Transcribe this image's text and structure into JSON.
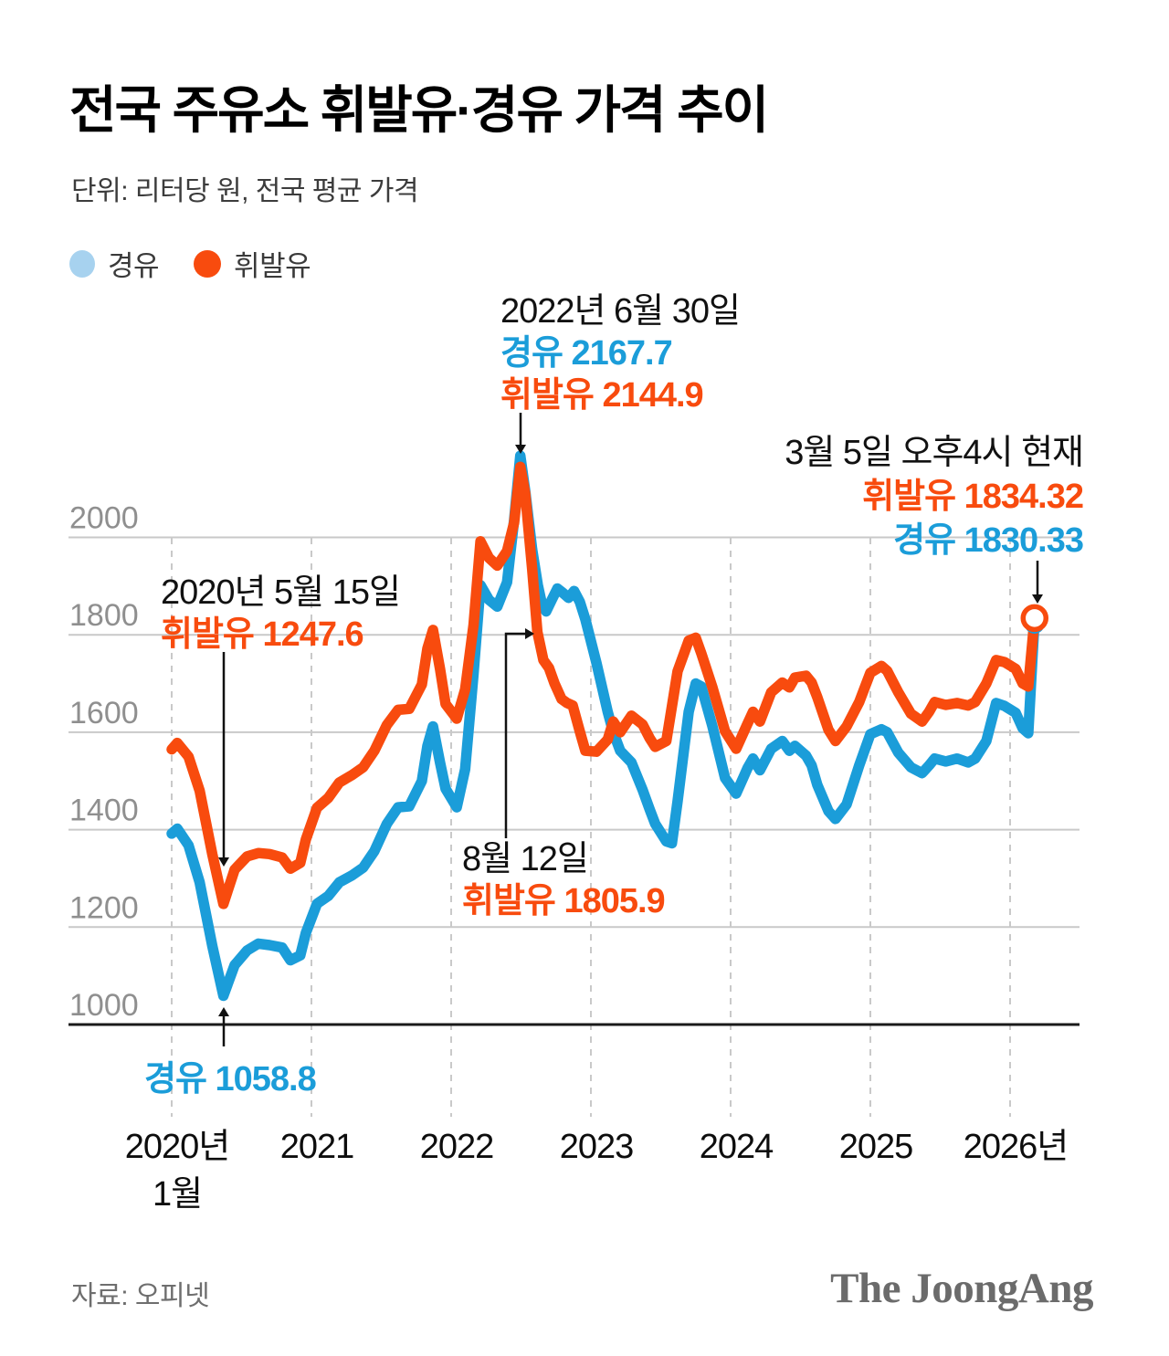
{
  "header": {
    "title": "전국 주유소 휘발유·경유 가격 추이",
    "subtitle": "단위: 리터당 원, 전국 평균 가격"
  },
  "legend": {
    "items": [
      {
        "label": "경유",
        "color": "#a7d2ef"
      },
      {
        "label": "휘발유",
        "color": "#f84b0e"
      }
    ]
  },
  "annotations": {
    "peak_2022": {
      "date": "2022년 6월 30일",
      "diesel": "경유 2167.7",
      "gasoline": "휘발유 2144.9"
    },
    "current": {
      "date": "3월 5일 오후4시 현재",
      "gasoline": "휘발유 1834.32",
      "diesel": "경유 1830.33"
    },
    "low_2020": {
      "date": "2020년 5월 15일",
      "gasoline": "휘발유 1247.6"
    },
    "aug_12": {
      "date": "8월 12일",
      "gasoline": "휘발유 1805.9"
    },
    "diesel_low": {
      "label": "경유 1058.8"
    }
  },
  "footer": {
    "source": "자료: 오피넷",
    "logo": "The JoongAng"
  },
  "chart_data": {
    "type": "line",
    "title": "전국 주유소 휘발유·경유 가격 추이",
    "unit": "원/리터 (전국 평균 가격)",
    "ylim": [
      1000,
      2200
    ],
    "y_ticks": [
      1000,
      1200,
      1400,
      1600,
      1800,
      2000
    ],
    "x_ticks": [
      {
        "label": "2020년",
        "sub": "1월",
        "year": 2020
      },
      {
        "label": "2021",
        "year": 2021
      },
      {
        "label": "2022",
        "year": 2022
      },
      {
        "label": "2023",
        "year": 2023
      },
      {
        "label": "2024",
        "year": 2024
      },
      {
        "label": "2025",
        "year": 2025
      },
      {
        "label": "2026년",
        "year": 2026
      }
    ],
    "grid": {
      "horizontal": true,
      "vertical_dashed": true
    },
    "legend_position": "top-left",
    "colors": {
      "diesel_line": "#1b9dd9",
      "gasoline_line": "#f84b0e",
      "diesel_legend_dot": "#a7d2ef",
      "grid": "#c9c9c9",
      "axis": "#1a1a1a",
      "y_label": "#8f8f8f",
      "x_label": "#0d0d0d"
    },
    "key_points": [
      {
        "date": "2020년 5월 15일",
        "series": "휘발유",
        "value": 1247.6
      },
      {
        "date": "2020년 5월 15일",
        "series": "경유",
        "value": 1058.8
      },
      {
        "date": "2022년 6월 30일",
        "series": "경유",
        "value": 2167.7
      },
      {
        "date": "2022년 6월 30일",
        "series": "휘발유",
        "value": 2144.9
      },
      {
        "date": "2022년 8월 12일",
        "series": "휘발유",
        "value": 1805.9
      },
      {
        "date": "3월 5일 오후4시 현재",
        "series": "휘발유",
        "value": 1834.32
      },
      {
        "date": "3월 5일 오후4시 현재",
        "series": "경유",
        "value": 1830.33
      }
    ],
    "series": [
      {
        "name": "경유",
        "color": "#1b9dd9",
        "points": [
          [
            2020.0,
            1392
          ],
          [
            2020.04,
            1402
          ],
          [
            2020.12,
            1368
          ],
          [
            2020.2,
            1292
          ],
          [
            2020.29,
            1162
          ],
          [
            2020.37,
            1059
          ],
          [
            2020.45,
            1122
          ],
          [
            2020.54,
            1152
          ],
          [
            2020.62,
            1166
          ],
          [
            2020.7,
            1163
          ],
          [
            2020.79,
            1158
          ],
          [
            2020.85,
            1132
          ],
          [
            2020.92,
            1142
          ],
          [
            2020.96,
            1188
          ],
          [
            2021.04,
            1248
          ],
          [
            2021.12,
            1264
          ],
          [
            2021.2,
            1292
          ],
          [
            2021.29,
            1306
          ],
          [
            2021.37,
            1322
          ],
          [
            2021.45,
            1356
          ],
          [
            2021.54,
            1412
          ],
          [
            2021.62,
            1446
          ],
          [
            2021.7,
            1448
          ],
          [
            2021.79,
            1500
          ],
          [
            2021.83,
            1572
          ],
          [
            2021.87,
            1612
          ],
          [
            2021.92,
            1538
          ],
          [
            2021.96,
            1484
          ],
          [
            2022.04,
            1446
          ],
          [
            2022.1,
            1524
          ],
          [
            2022.16,
            1720
          ],
          [
            2022.21,
            1902
          ],
          [
            2022.27,
            1872
          ],
          [
            2022.33,
            1858
          ],
          [
            2022.4,
            1908
          ],
          [
            2022.45,
            2035
          ],
          [
            2022.495,
            2167.7
          ],
          [
            2022.53,
            2095
          ],
          [
            2022.58,
            1975
          ],
          [
            2022.62,
            1902
          ],
          [
            2022.65,
            1862
          ],
          [
            2022.68,
            1848
          ],
          [
            2022.72,
            1872
          ],
          [
            2022.76,
            1895
          ],
          [
            2022.8,
            1886
          ],
          [
            2022.84,
            1876
          ],
          [
            2022.88,
            1890
          ],
          [
            2022.92,
            1868
          ],
          [
            2022.96,
            1832
          ],
          [
            2023.04,
            1742
          ],
          [
            2023.12,
            1642
          ],
          [
            2023.16,
            1600
          ],
          [
            2023.21,
            1562
          ],
          [
            2023.29,
            1538
          ],
          [
            2023.37,
            1482
          ],
          [
            2023.42,
            1442
          ],
          [
            2023.46,
            1412
          ],
          [
            2023.54,
            1376
          ],
          [
            2023.58,
            1372
          ],
          [
            2023.62,
            1458
          ],
          [
            2023.7,
            1642
          ],
          [
            2023.75,
            1700
          ],
          [
            2023.79,
            1694
          ],
          [
            2023.87,
            1612
          ],
          [
            2023.96,
            1506
          ],
          [
            2024.04,
            1474
          ],
          [
            2024.12,
            1526
          ],
          [
            2024.16,
            1546
          ],
          [
            2024.21,
            1522
          ],
          [
            2024.29,
            1566
          ],
          [
            2024.37,
            1582
          ],
          [
            2024.42,
            1562
          ],
          [
            2024.46,
            1572
          ],
          [
            2024.54,
            1552
          ],
          [
            2024.58,
            1532
          ],
          [
            2024.62,
            1492
          ],
          [
            2024.7,
            1438
          ],
          [
            2024.75,
            1422
          ],
          [
            2024.83,
            1452
          ],
          [
            2024.92,
            1532
          ],
          [
            2025.0,
            1596
          ],
          [
            2025.08,
            1606
          ],
          [
            2025.12,
            1600
          ],
          [
            2025.2,
            1558
          ],
          [
            2025.29,
            1528
          ],
          [
            2025.37,
            1516
          ],
          [
            2025.42,
            1532
          ],
          [
            2025.46,
            1546
          ],
          [
            2025.54,
            1540
          ],
          [
            2025.62,
            1546
          ],
          [
            2025.7,
            1538
          ],
          [
            2025.75,
            1546
          ],
          [
            2025.83,
            1582
          ],
          [
            2025.9,
            1660
          ],
          [
            2025.96,
            1654
          ],
          [
            2026.04,
            1640
          ],
          [
            2026.09,
            1608
          ],
          [
            2026.13,
            1598
          ],
          [
            2026.175,
            1830.33
          ]
        ]
      },
      {
        "name": "휘발유",
        "color": "#f84b0e",
        "points": [
          [
            2020.0,
            1565
          ],
          [
            2020.04,
            1578
          ],
          [
            2020.12,
            1550
          ],
          [
            2020.2,
            1480
          ],
          [
            2020.29,
            1350
          ],
          [
            2020.37,
            1247.6
          ],
          [
            2020.45,
            1318
          ],
          [
            2020.54,
            1345
          ],
          [
            2020.62,
            1352
          ],
          [
            2020.7,
            1350
          ],
          [
            2020.79,
            1343
          ],
          [
            2020.85,
            1320
          ],
          [
            2020.92,
            1332
          ],
          [
            2020.96,
            1380
          ],
          [
            2021.04,
            1445
          ],
          [
            2021.12,
            1465
          ],
          [
            2021.2,
            1497
          ],
          [
            2021.29,
            1512
          ],
          [
            2021.37,
            1528
          ],
          [
            2021.45,
            1562
          ],
          [
            2021.54,
            1615
          ],
          [
            2021.62,
            1646
          ],
          [
            2021.7,
            1648
          ],
          [
            2021.79,
            1698
          ],
          [
            2021.83,
            1772
          ],
          [
            2021.87,
            1810
          ],
          [
            2021.92,
            1730
          ],
          [
            2021.96,
            1658
          ],
          [
            2022.04,
            1628
          ],
          [
            2022.1,
            1688
          ],
          [
            2022.16,
            1820
          ],
          [
            2022.21,
            1992
          ],
          [
            2022.27,
            1958
          ],
          [
            2022.33,
            1942
          ],
          [
            2022.4,
            1972
          ],
          [
            2022.45,
            2030
          ],
          [
            2022.495,
            2144.9
          ],
          [
            2022.53,
            2090
          ],
          [
            2022.58,
            1935
          ],
          [
            2022.617,
            1805.9
          ],
          [
            2022.66,
            1748
          ],
          [
            2022.7,
            1732
          ],
          [
            2022.74,
            1700
          ],
          [
            2022.79,
            1668
          ],
          [
            2022.83,
            1660
          ],
          [
            2022.87,
            1655
          ],
          [
            2022.92,
            1602
          ],
          [
            2022.96,
            1562
          ],
          [
            2023.04,
            1560
          ],
          [
            2023.12,
            1585
          ],
          [
            2023.16,
            1622
          ],
          [
            2023.21,
            1600
          ],
          [
            2023.29,
            1634
          ],
          [
            2023.37,
            1616
          ],
          [
            2023.42,
            1588
          ],
          [
            2023.46,
            1570
          ],
          [
            2023.54,
            1582
          ],
          [
            2023.62,
            1725
          ],
          [
            2023.7,
            1788
          ],
          [
            2023.75,
            1794
          ],
          [
            2023.79,
            1762
          ],
          [
            2023.87,
            1692
          ],
          [
            2023.96,
            1602
          ],
          [
            2024.04,
            1566
          ],
          [
            2024.12,
            1617
          ],
          [
            2024.16,
            1642
          ],
          [
            2024.21,
            1622
          ],
          [
            2024.29,
            1682
          ],
          [
            2024.37,
            1702
          ],
          [
            2024.42,
            1692
          ],
          [
            2024.46,
            1712
          ],
          [
            2024.54,
            1716
          ],
          [
            2024.58,
            1702
          ],
          [
            2024.62,
            1672
          ],
          [
            2024.7,
            1605
          ],
          [
            2024.75,
            1582
          ],
          [
            2024.83,
            1612
          ],
          [
            2024.92,
            1662
          ],
          [
            2025.0,
            1722
          ],
          [
            2025.08,
            1736
          ],
          [
            2025.12,
            1726
          ],
          [
            2025.2,
            1682
          ],
          [
            2025.29,
            1638
          ],
          [
            2025.37,
            1622
          ],
          [
            2025.42,
            1642
          ],
          [
            2025.46,
            1662
          ],
          [
            2025.54,
            1656
          ],
          [
            2025.62,
            1660
          ],
          [
            2025.7,
            1655
          ],
          [
            2025.75,
            1662
          ],
          [
            2025.83,
            1700
          ],
          [
            2025.9,
            1748
          ],
          [
            2025.96,
            1744
          ],
          [
            2026.04,
            1730
          ],
          [
            2026.09,
            1700
          ],
          [
            2026.13,
            1694
          ],
          [
            2026.175,
            1834.32
          ]
        ]
      }
    ]
  }
}
